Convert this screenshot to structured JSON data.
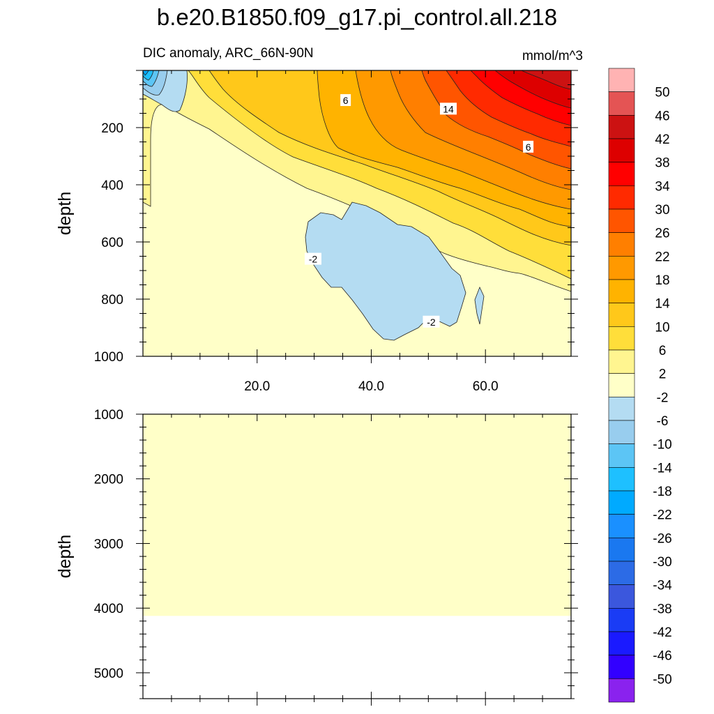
{
  "chart_data": {
    "type": "contour",
    "title": "b.e20.B1850.f09_g17.pi_control.all.218",
    "subtitle_left": "DIC anomaly, ARC_66N-90N",
    "subtitle_right": "mmol/m^3",
    "colorbar": {
      "labels": [
        "50",
        "46",
        "42",
        "38",
        "34",
        "30",
        "26",
        "22",
        "18",
        "14",
        "10",
        "6",
        "2",
        "-2",
        "-6",
        "-10",
        "-14",
        "-18",
        "-22",
        "-26",
        "-30",
        "-34",
        "-38",
        "-42",
        "-46",
        "-50"
      ],
      "colors": [
        "#ffb3b3",
        "#e45454",
        "#cc1212",
        "#dd0000",
        "#ff0000",
        "#ff2a00",
        "#ff5500",
        "#ff7f00",
        "#ff9900",
        "#ffb300",
        "#ffc81a",
        "#ffde3a",
        "#fff590",
        "#ffffc8",
        "#b4dcf2",
        "#98cdee",
        "#5cc5f5",
        "#1ec0ff",
        "#00aaff",
        "#1a90ff",
        "#1a78f0",
        "#2c6be6",
        "#3b57dd",
        "#1a3cf5",
        "#1a1aff",
        "#3200ff",
        "#8a22ee"
      ]
    },
    "panels": [
      {
        "name": "upper",
        "ylabel": "depth",
        "xlim": [
          0,
          75
        ],
        "ylim": [
          1000,
          0
        ],
        "xticks": [
          "20.0",
          "40.0",
          "60.0"
        ],
        "yticks": [
          "200",
          "400",
          "600",
          "800",
          "1000"
        ],
        "contour_labels": [
          {
            "text": "6",
            "x": 35.5,
            "y": 105
          },
          {
            "text": "14",
            "x": 53.5,
            "y": 135
          },
          {
            "text": "6",
            "x": 67.5,
            "y": 268
          },
          {
            "text": "-2",
            "x": 29.8,
            "y": 660
          },
          {
            "text": "-2",
            "x": 50.5,
            "y": 880
          }
        ]
      },
      {
        "name": "lower",
        "ylabel": "depth",
        "xlim": [
          0,
          75
        ],
        "ylim": [
          5400,
          1000
        ],
        "yticks": [
          "1000",
          "2000",
          "3000",
          "4000",
          "5000"
        ],
        "filled_to_depth": 4120
      }
    ]
  }
}
